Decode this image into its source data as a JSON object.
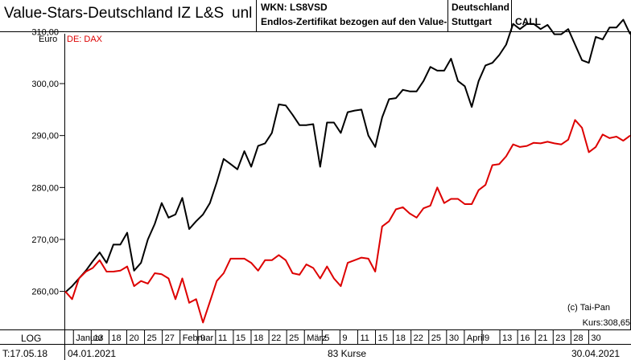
{
  "header": {
    "title": "Value-Stars-Deutschland IZ L&S",
    "unit_suffix": "unl",
    "wkn": "WKN: LS8VSD",
    "description": "Endlos-Zertifikat bezogen auf den Value-",
    "country": "Deutschland",
    "exchange": "Stuttgart",
    "type": "CALL"
  },
  "chart_data": {
    "type": "line",
    "currency_label": "Euro",
    "comparison_label": "DE: DAX",
    "y_ticks": [
      "310,00",
      "300,00",
      "290,00",
      "280,00",
      "270,00",
      "260,00"
    ],
    "ylim": [
      254,
      316
    ],
    "grid": false,
    "x_tick_labels": [
      "Januar",
      "13",
      "18",
      "20",
      "25",
      "27",
      "Februar",
      "9",
      "11",
      "15",
      "18",
      "22",
      "25",
      "März",
      "5",
      "9",
      "11",
      "15",
      "18",
      "22",
      "25",
      "30",
      "April",
      "9",
      "13",
      "16",
      "21",
      "23",
      "28",
      "30"
    ],
    "series": [
      {
        "name": "Value-Stars-Deutschland IZ L&S",
        "color": "#000000",
        "values": [
          259.8,
          261.0,
          262.5,
          264.0,
          265.8,
          267.5,
          265.5,
          269.0,
          269.0,
          271.3,
          264.0,
          265.5,
          270.0,
          273.0,
          277.0,
          274.2,
          274.8,
          278.0,
          272.0,
          273.5,
          274.8,
          277.0,
          281.0,
          285.5,
          284.5,
          283.5,
          287.0,
          284.0,
          288.0,
          288.5,
          290.5,
          296.0,
          295.8,
          294.0,
          292.0,
          292.0,
          292.2,
          284.0,
          292.5,
          292.5,
          290.5,
          294.5,
          294.8,
          295.0,
          290.0,
          287.8,
          293.5,
          297.0,
          297.2,
          298.8,
          298.5,
          298.5,
          300.5,
          303.2,
          302.5,
          302.5,
          304.8,
          300.5,
          299.5,
          295.5,
          300.5,
          303.5,
          304.0,
          305.5,
          307.5,
          311.5,
          310.5,
          311.5,
          311.5,
          310.5,
          311.3,
          309.5,
          309.5,
          310.5,
          307.5,
          304.5,
          304.0,
          309.0,
          308.5,
          310.8,
          310.8,
          312.3,
          309.5
        ]
      },
      {
        "name": "DE: DAX",
        "color": "#dd0000",
        "values": [
          260.0,
          258.5,
          262.5,
          263.8,
          264.5,
          266.0,
          263.8,
          263.8,
          264.0,
          264.8,
          261.0,
          262.0,
          261.5,
          263.5,
          263.3,
          262.5,
          258.5,
          262.5,
          257.8,
          258.5,
          254.0,
          258.0,
          262.0,
          263.5,
          266.3,
          266.3,
          266.3,
          265.5,
          264.0,
          266.0,
          266.0,
          267.0,
          266.0,
          263.5,
          263.2,
          265.2,
          264.5,
          262.5,
          264.8,
          262.5,
          261.0,
          265.5,
          266.0,
          266.5,
          266.3,
          263.8,
          272.5,
          273.5,
          275.8,
          276.2,
          275.0,
          274.2,
          276.0,
          276.5,
          280.0,
          277.0,
          277.8,
          277.8,
          276.8,
          276.8,
          279.5,
          280.5,
          284.3,
          284.5,
          286.0,
          288.3,
          287.8,
          288.0,
          288.6,
          288.5,
          288.8,
          288.5,
          288.3,
          289.2,
          293.0,
          291.5,
          286.8,
          287.8,
          290.2,
          289.5,
          289.8,
          289.0,
          290.0
        ]
      }
    ]
  },
  "annotations": {
    "copyright": "(c) Tai-Pan",
    "last_price": "Kurs:308,65"
  },
  "footer": {
    "scale_label": "LOG",
    "date_stamp": "T:17.05.18",
    "start_date": "04.01.2021",
    "count": "83 Kurse",
    "end_date": "30.04.2021"
  }
}
